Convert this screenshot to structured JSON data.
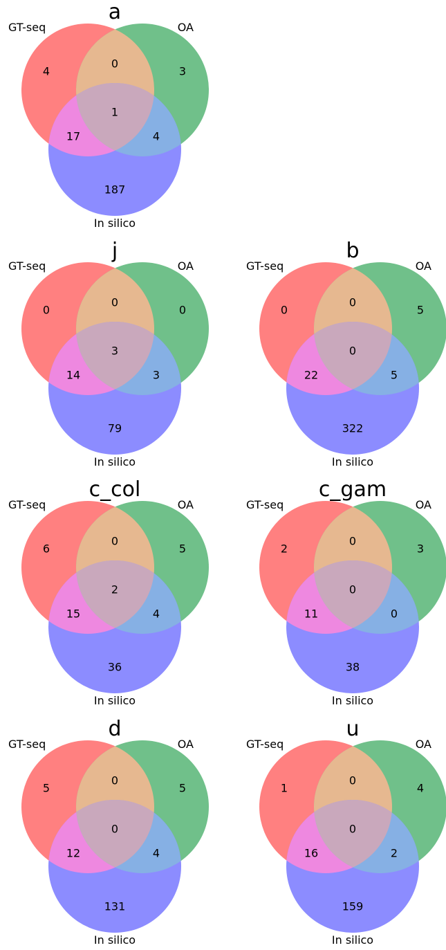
{
  "colors": {
    "set_a": "#ff8080",
    "set_b": "#70c08a",
    "set_c": "#8c8cff",
    "ab": "#e6b890",
    "ac": "#ee88e0",
    "bc": "#86b0e4",
    "abc": "#c9a8bc"
  },
  "set_labels": {
    "a": "GT-seq",
    "b": "OA",
    "c": "In silico"
  },
  "diagrams": [
    {
      "title": "a",
      "counts": {
        "a_only": "4",
        "b_only": "3",
        "ab_only": "0",
        "abc": "1",
        "ac_only": "17",
        "bc_only": "4",
        "c_only": "187"
      }
    },
    {
      "title": "j",
      "counts": {
        "a_only": "0",
        "b_only": "0",
        "ab_only": "0",
        "abc": "3",
        "ac_only": "14",
        "bc_only": "3",
        "c_only": "79"
      }
    },
    {
      "title": "b",
      "counts": {
        "a_only": "0",
        "b_only": "5",
        "ab_only": "0",
        "abc": "0",
        "ac_only": "22",
        "bc_only": "5",
        "c_only": "322"
      }
    },
    {
      "title": "c_col",
      "counts": {
        "a_only": "6",
        "b_only": "5",
        "ab_only": "0",
        "abc": "2",
        "ac_only": "15",
        "bc_only": "4",
        "c_only": "36"
      }
    },
    {
      "title": "c_gam",
      "counts": {
        "a_only": "2",
        "b_only": "3",
        "ab_only": "0",
        "abc": "0",
        "ac_only": "11",
        "bc_only": "0",
        "c_only": "38"
      }
    },
    {
      "title": "d",
      "counts": {
        "a_only": "5",
        "b_only": "5",
        "ab_only": "0",
        "abc": "0",
        "ac_only": "12",
        "bc_only": "4",
        "c_only": "131"
      }
    },
    {
      "title": "u",
      "counts": {
        "a_only": "1",
        "b_only": "4",
        "ab_only": "0",
        "abc": "0",
        "ac_only": "16",
        "bc_only": "2",
        "c_only": "159"
      }
    }
  ]
}
